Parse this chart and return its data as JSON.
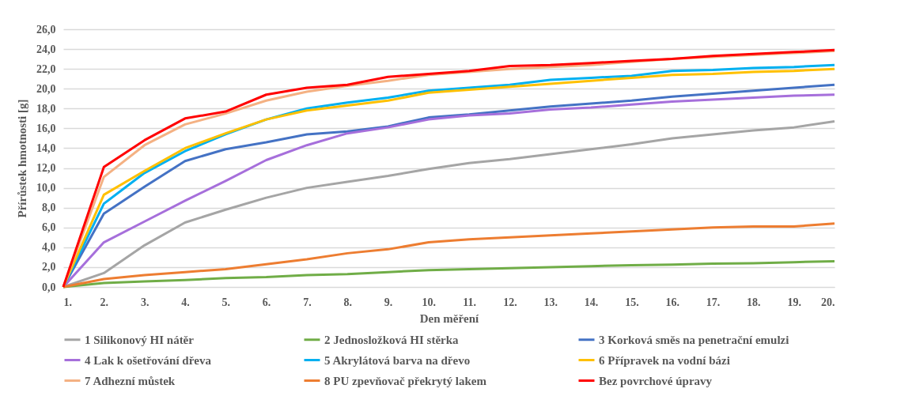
{
  "chart_data": {
    "type": "line",
    "xlabel": "Den měření",
    "ylabel": "Přírůstek hmotnosti [g]",
    "categories": [
      "1.",
      "2.",
      "3.",
      "4.",
      "5.",
      "6.",
      "7.",
      "8.",
      "9.",
      "10.",
      "11.",
      "12.",
      "13.",
      "14.",
      "15.",
      "16.",
      "17.",
      "18.",
      "19.",
      "20."
    ],
    "ylim": [
      0,
      26
    ],
    "yticks": [
      {
        "value": 0,
        "label": "0,0"
      },
      {
        "value": 2,
        "label": "2,0"
      },
      {
        "value": 4,
        "label": "4,0"
      },
      {
        "value": 6,
        "label": "6,0"
      },
      {
        "value": 8,
        "label": "8,0"
      },
      {
        "value": 10,
        "label": "10,0"
      },
      {
        "value": 12,
        "label": "12,0"
      },
      {
        "value": 14,
        "label": "14,0"
      },
      {
        "value": 16,
        "label": "16,0"
      },
      {
        "value": 18,
        "label": "18,0"
      },
      {
        "value": 20,
        "label": "20,0"
      },
      {
        "value": 22,
        "label": "22,0"
      },
      {
        "value": 24,
        "label": "24,0"
      },
      {
        "value": 26,
        "label": "26,0"
      }
    ],
    "grid": "y",
    "legend": "bottom",
    "marker": "none",
    "line_style": "solid",
    "series": [
      {
        "name": "1 Silikonový HI nátěr",
        "color": "#a5a5a5",
        "values": [
          0,
          1.4,
          4.2,
          6.5,
          7.8,
          9.0,
          10.0,
          10.6,
          11.2,
          11.9,
          12.5,
          12.9,
          13.4,
          13.9,
          14.4,
          15.0,
          15.4,
          15.8,
          16.1,
          16.7
        ]
      },
      {
        "name": "2 Jednosložková HI stěrka",
        "color": "#70ad47",
        "values": [
          0,
          0.4,
          0.55,
          0.7,
          0.9,
          1.0,
          1.2,
          1.3,
          1.5,
          1.7,
          1.8,
          1.9,
          2.0,
          2.1,
          2.2,
          2.25,
          2.35,
          2.4,
          2.5,
          2.6
        ]
      },
      {
        "name": "3 Korková směs na penetrační emulzi",
        "color": "#4472c4",
        "values": [
          0,
          7.4,
          10.1,
          12.7,
          13.9,
          14.6,
          15.4,
          15.7,
          16.2,
          17.1,
          17.4,
          17.8,
          18.2,
          18.5,
          18.8,
          19.2,
          19.5,
          19.8,
          20.1,
          20.4
        ]
      },
      {
        "name": "4 Lak k ošetřování dřeva",
        "color": "#a66fdb",
        "values": [
          0,
          4.5,
          6.6,
          8.7,
          10.7,
          12.8,
          14.3,
          15.5,
          16.1,
          16.9,
          17.3,
          17.5,
          17.9,
          18.1,
          18.4,
          18.7,
          18.9,
          19.1,
          19.3,
          19.4
        ]
      },
      {
        "name": "5 Akrylátová barva na dřevo",
        "color": "#00b0f0",
        "values": [
          0,
          8.4,
          11.5,
          13.7,
          15.4,
          16.9,
          18.0,
          18.6,
          19.1,
          19.8,
          20.1,
          20.4,
          20.9,
          21.1,
          21.3,
          21.8,
          21.9,
          22.1,
          22.2,
          22.4
        ]
      },
      {
        "name": "6 Přípravek na vodní bázi",
        "color": "#ffc000",
        "values": [
          0,
          9.3,
          11.7,
          14.0,
          15.5,
          16.9,
          17.8,
          18.3,
          18.8,
          19.6,
          19.9,
          20.2,
          20.5,
          20.8,
          21.1,
          21.4,
          21.5,
          21.7,
          21.8,
          22.0
        ]
      },
      {
        "name": "7 Adhezní můstek",
        "color": "#f4b183",
        "values": [
          0,
          11.1,
          14.3,
          16.4,
          17.5,
          18.8,
          19.7,
          20.3,
          20.8,
          21.4,
          21.7,
          22.0,
          22.2,
          22.4,
          22.7,
          23.0,
          23.2,
          23.4,
          23.6,
          23.8
        ]
      },
      {
        "name": "8 PU zpevňovač překrytý lakem",
        "color": "#ed7d31",
        "values": [
          0,
          0.8,
          1.2,
          1.5,
          1.8,
          2.3,
          2.8,
          3.4,
          3.8,
          4.5,
          4.8,
          5.0,
          5.2,
          5.4,
          5.6,
          5.8,
          6.0,
          6.1,
          6.1,
          6.4
        ]
      },
      {
        "name": "Bez povrchové úpravy",
        "color": "#ff0000",
        "values": [
          0,
          12.1,
          14.8,
          17.0,
          17.7,
          19.4,
          20.1,
          20.4,
          21.2,
          21.5,
          21.8,
          22.3,
          22.4,
          22.6,
          22.8,
          23.0,
          23.3,
          23.5,
          23.7,
          23.9
        ]
      }
    ]
  }
}
